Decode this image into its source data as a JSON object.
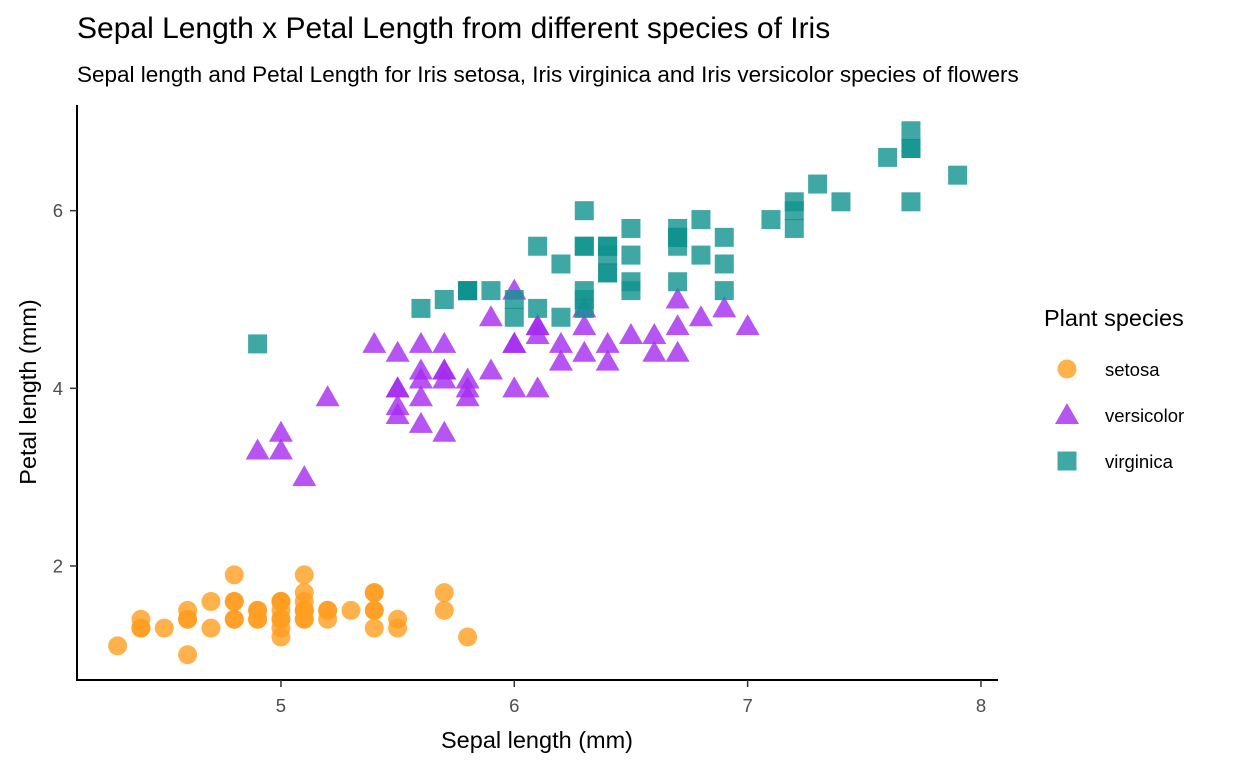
{
  "chart_data": {
    "type": "scatter",
    "title": "Sepal Length x Petal Length from different species of Iris",
    "subtitle": "Sepal length and Petal Length for Iris setosa, Iris virginica and Iris versicolor species of flowers",
    "xlabel": "Sepal length (mm)",
    "ylabel": "Petal length (mm)",
    "xlim": [
      4.126,
      8.073
    ],
    "ylim": [
      0.716,
      7.19
    ],
    "xticks": [
      5,
      6,
      7,
      8
    ],
    "yticks": [
      2,
      4,
      6
    ],
    "grid": false,
    "legend": {
      "title": "Plant species",
      "position": "right"
    },
    "series": [
      {
        "name": "setosa",
        "shape": "circle",
        "color": "#ff9e1f",
        "x": [
          5.1,
          4.9,
          4.7,
          4.6,
          5.0,
          5.4,
          4.6,
          5.0,
          4.4,
          4.9,
          5.4,
          4.8,
          4.8,
          4.3,
          5.8,
          5.7,
          5.4,
          5.1,
          5.7,
          5.1,
          5.4,
          5.1,
          4.6,
          5.1,
          4.8,
          5.0,
          5.0,
          5.2,
          5.2,
          4.7,
          4.8,
          5.4,
          5.2,
          5.5,
          4.9,
          5.0,
          5.5,
          4.9,
          4.4,
          5.1,
          5.0,
          4.5,
          4.4,
          5.0,
          5.1,
          4.8,
          5.1,
          4.6,
          5.3,
          5.0
        ],
        "y": [
          1.4,
          1.4,
          1.3,
          1.5,
          1.4,
          1.7,
          1.4,
          1.5,
          1.4,
          1.5,
          1.5,
          1.6,
          1.4,
          1.1,
          1.2,
          1.5,
          1.3,
          1.4,
          1.7,
          1.5,
          1.7,
          1.5,
          1.0,
          1.7,
          1.9,
          1.6,
          1.6,
          1.5,
          1.4,
          1.6,
          1.6,
          1.5,
          1.5,
          1.4,
          1.5,
          1.2,
          1.3,
          1.4,
          1.3,
          1.5,
          1.3,
          1.3,
          1.3,
          1.6,
          1.9,
          1.4,
          1.6,
          1.4,
          1.5,
          1.4
        ]
      },
      {
        "name": "versicolor",
        "shape": "triangle",
        "color": "#a52bef",
        "x": [
          7.0,
          6.4,
          6.9,
          5.5,
          6.5,
          5.7,
          6.3,
          4.9,
          6.6,
          5.2,
          5.0,
          5.9,
          6.0,
          6.1,
          5.6,
          6.7,
          5.6,
          5.8,
          6.2,
          5.6,
          5.9,
          6.1,
          6.3,
          6.1,
          6.4,
          6.6,
          6.8,
          6.7,
          6.0,
          5.7,
          5.5,
          5.5,
          5.8,
          6.0,
          5.4,
          6.0,
          6.7,
          6.3,
          5.6,
          5.5,
          5.5,
          6.1,
          5.8,
          5.0,
          5.6,
          5.7,
          5.7,
          6.2,
          5.1,
          5.7
        ],
        "y": [
          4.7,
          4.5,
          4.9,
          4.0,
          4.6,
          4.5,
          4.7,
          3.3,
          4.6,
          3.9,
          3.5,
          4.2,
          4.0,
          4.7,
          3.6,
          4.4,
          4.5,
          4.1,
          4.5,
          3.9,
          4.8,
          4.0,
          4.9,
          4.7,
          4.3,
          4.4,
          4.8,
          5.0,
          4.5,
          3.5,
          3.8,
          3.7,
          3.9,
          5.1,
          4.5,
          4.5,
          4.7,
          4.4,
          4.1,
          4.0,
          4.4,
          4.6,
          4.0,
          3.3,
          4.2,
          4.2,
          4.2,
          4.3,
          3.0,
          4.1
        ]
      },
      {
        "name": "virginica",
        "shape": "square",
        "color": "#0f928f",
        "x": [
          6.3,
          5.8,
          7.1,
          6.3,
          6.5,
          7.6,
          4.9,
          7.3,
          6.7,
          7.2,
          6.5,
          6.4,
          6.8,
          5.7,
          5.8,
          6.4,
          6.5,
          7.7,
          7.7,
          6.0,
          6.9,
          5.6,
          7.7,
          6.3,
          6.7,
          7.2,
          6.2,
          6.1,
          6.4,
          7.2,
          7.4,
          7.9,
          6.4,
          6.3,
          6.1,
          7.7,
          6.3,
          6.4,
          6.0,
          6.9,
          6.7,
          6.9,
          5.8,
          6.8,
          6.7,
          6.7,
          6.3,
          6.5,
          6.2,
          5.9
        ],
        "y": [
          6.0,
          5.1,
          5.9,
          5.6,
          5.8,
          6.6,
          4.5,
          6.3,
          5.8,
          6.1,
          5.1,
          5.3,
          5.5,
          5.0,
          5.1,
          5.3,
          5.5,
          6.7,
          6.9,
          5.0,
          5.7,
          4.9,
          6.7,
          4.9,
          5.7,
          6.0,
          4.8,
          4.9,
          5.6,
          5.8,
          6.1,
          6.4,
          5.6,
          5.1,
          5.6,
          6.1,
          5.6,
          5.5,
          4.8,
          5.4,
          5.6,
          5.1,
          5.1,
          5.9,
          5.7,
          5.2,
          5.0,
          5.2,
          5.4,
          5.1
        ]
      }
    ]
  }
}
